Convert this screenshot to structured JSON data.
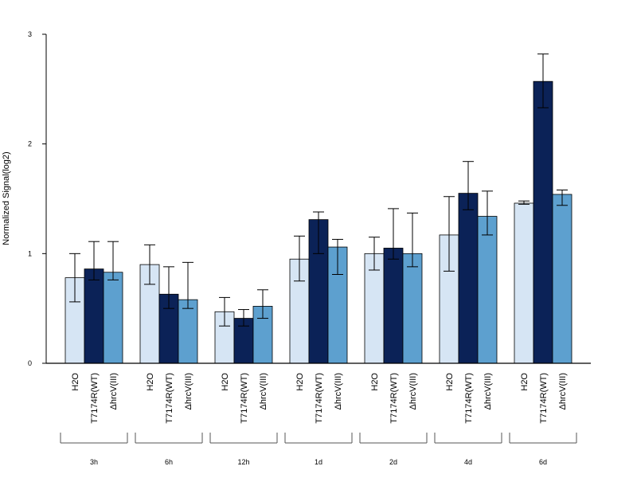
{
  "chart_data": {
    "type": "bar",
    "title": "",
    "xlabel": "",
    "ylabel": "Normalized Signal(log2)",
    "ylim": [
      0,
      3
    ],
    "yticks": [
      0,
      1,
      2,
      3
    ],
    "grid": false,
    "legend": "none",
    "series_order": [
      "H2O",
      "T7174R(WT)",
      "ΔhrcV(III)"
    ],
    "colors": {
      "H2O": "#d6e5f4",
      "T7174R(WT)": "#0b2257",
      "ΔhrcV(III)": "#5da0cf"
    },
    "groups": [
      {
        "label": "3h",
        "bars": [
          {
            "category": "H2O",
            "value": 0.78,
            "err_low": 0.56,
            "err_high": 1.0
          },
          {
            "category": "T7174R(WT)",
            "value": 0.86,
            "err_low": 0.76,
            "err_high": 1.11
          },
          {
            "category": "ΔhrcV(III)",
            "value": 0.83,
            "err_low": 0.76,
            "err_high": 1.11
          }
        ]
      },
      {
        "label": "6h",
        "bars": [
          {
            "category": "H2O",
            "value": 0.9,
            "err_low": 0.72,
            "err_high": 1.08
          },
          {
            "category": "T7174R(WT)",
            "value": 0.63,
            "err_low": 0.5,
            "err_high": 0.88
          },
          {
            "category": "ΔhrcV(III)",
            "value": 0.58,
            "err_low": 0.5,
            "err_high": 0.92
          }
        ]
      },
      {
        "label": "12h",
        "bars": [
          {
            "category": "H2O",
            "value": 0.47,
            "err_low": 0.34,
            "err_high": 0.6
          },
          {
            "category": "T7174R(WT)",
            "value": 0.41,
            "err_low": 0.34,
            "err_high": 0.49
          },
          {
            "category": "ΔhrcV(III)",
            "value": 0.52,
            "err_low": 0.41,
            "err_high": 0.67
          }
        ]
      },
      {
        "label": "1d",
        "bars": [
          {
            "category": "H2O",
            "value": 0.95,
            "err_low": 0.75,
            "err_high": 1.16
          },
          {
            "category": "T7174R(WT)",
            "value": 1.31,
            "err_low": 1.0,
            "err_high": 1.38
          },
          {
            "category": "ΔhrcV(III)",
            "value": 1.06,
            "err_low": 0.81,
            "err_high": 1.13
          }
        ]
      },
      {
        "label": "2d",
        "bars": [
          {
            "category": "H2O",
            "value": 1.0,
            "err_low": 0.85,
            "err_high": 1.15
          },
          {
            "category": "T7174R(WT)",
            "value": 1.05,
            "err_low": 0.95,
            "err_high": 1.41
          },
          {
            "category": "ΔhrcV(III)",
            "value": 1.0,
            "err_low": 0.88,
            "err_high": 1.37
          }
        ]
      },
      {
        "label": "4d",
        "bars": [
          {
            "category": "H2O",
            "value": 1.17,
            "err_low": 0.84,
            "err_high": 1.52
          },
          {
            "category": "T7174R(WT)",
            "value": 1.55,
            "err_low": 1.4,
            "err_high": 1.84
          },
          {
            "category": "ΔhrcV(III)",
            "value": 1.34,
            "err_low": 1.17,
            "err_high": 1.57
          }
        ]
      },
      {
        "label": "6d",
        "bars": [
          {
            "category": "H2O",
            "value": 1.46,
            "err_low": 1.45,
            "err_high": 1.48
          },
          {
            "category": "T7174R(WT)",
            "value": 2.57,
            "err_low": 2.33,
            "err_high": 2.82
          },
          {
            "category": "ΔhrcV(III)",
            "value": 1.54,
            "err_low": 1.44,
            "err_high": 1.58
          }
        ]
      }
    ]
  }
}
